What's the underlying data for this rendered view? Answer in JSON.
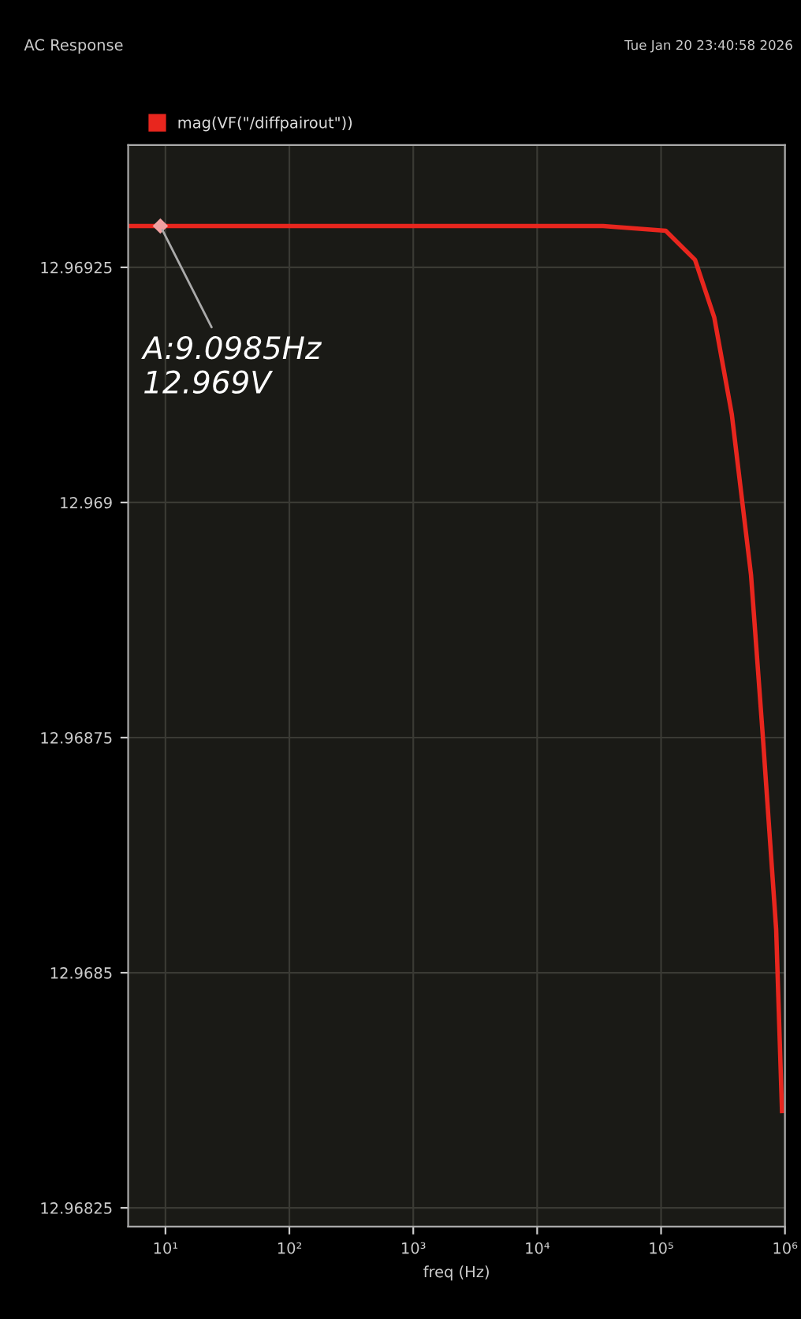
{
  "chart_data": {
    "type": "line",
    "title": "AC Response",
    "xlabel": "freq (Hz)",
    "log": "x",
    "grid": true,
    "legend": "top left",
    "line_style": "solid",
    "marker": "none",
    "x": [
      5,
      9.0985,
      100,
      1000,
      10000,
      34000,
      109000,
      188000,
      268500,
      372000,
      532000,
      662000,
      849000,
      946000
    ],
    "series": [
      {
        "name": "mag(VF(\"/diffpairout\"))",
        "color": "#e8261e",
        "values": [
          12.969294,
          12.969294,
          12.969294,
          12.969294,
          12.969294,
          12.969294,
          12.969289,
          12.969258,
          12.969197,
          12.969094,
          12.968923,
          12.968752,
          12.968546,
          12.968353
        ]
      }
    ],
    "xlim": [
      5,
      1000000
    ],
    "xticks": [
      {
        "value": 10,
        "label": "10¹"
      },
      {
        "value": 100,
        "label": "10²"
      },
      {
        "value": 1000,
        "label": "10³"
      },
      {
        "value": 10000,
        "label": "10⁴"
      },
      {
        "value": 100000,
        "label": "10⁵"
      },
      {
        "value": 1000000,
        "label": "10⁶"
      }
    ],
    "ylim": [
      12.96823,
      12.96938
    ],
    "yticks": [
      12.96825,
      12.9685,
      12.96875,
      12.969,
      12.96925
    ],
    "annotations": [
      {
        "text": "A:9.0985Hz\n12.969V",
        "x": 9.0985,
        "y": 12.969294
      },
      "Tue Jan 20 23:40:58 2026"
    ]
  }
}
